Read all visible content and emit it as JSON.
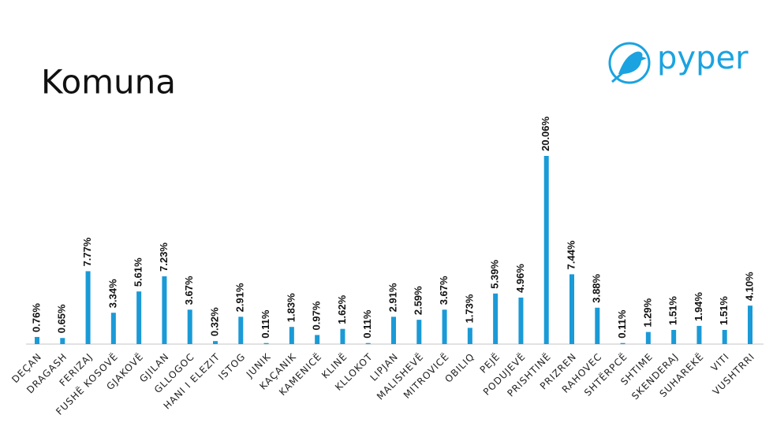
{
  "chart_data": {
    "type": "bar",
    "title": "Komuna",
    "logo": "pyper",
    "categories": [
      "DEÇAN",
      "DRAGASH",
      "FERIZAJ",
      "FUSHË KOSOVË",
      "GJAKOVË",
      "GJILAN",
      "GLLOGOC",
      "HANI I ELEZIT",
      "ISTOG",
      "JUNIK",
      "KAÇANIK",
      "KAMENICË",
      "KLINË",
      "KLLOKOT",
      "LIPJAN",
      "MALISHEVË",
      "MITROVICË",
      "OBILIQ",
      "PEJË",
      "PODUJEVË",
      "PRISHTINË",
      "PRIZREN",
      "RAHOVEC",
      "SHTËRPCË",
      "SHTIME",
      "SKENDERAJ",
      "SUHAREKË",
      "VITI",
      "VUSHTRRI"
    ],
    "values": [
      0.76,
      0.65,
      7.77,
      3.34,
      5.61,
      7.23,
      3.67,
      0.32,
      2.91,
      0.11,
      1.83,
      0.97,
      1.62,
      0.11,
      2.91,
      2.59,
      3.67,
      1.73,
      5.39,
      4.96,
      20.06,
      7.44,
      3.88,
      0.11,
      1.29,
      1.51,
      1.94,
      1.51,
      4.1
    ],
    "value_labels": [
      "0.76%",
      "0.65%",
      "7.77%",
      "3.34%",
      "5.61%",
      "7.23%",
      "3.67%",
      "0.32%",
      "2.91%",
      "0.11%",
      "1.83%",
      "0.97%",
      "1.62%",
      "0.11%",
      "2.91%",
      "2.59%",
      "3.67%",
      "1.73%",
      "5.39%",
      "4.96%",
      "20.06%",
      "7.44%",
      "3.88%",
      "0.11%",
      "1.29%",
      "1.51%",
      "1.94%",
      "1.51%",
      "4.10%"
    ],
    "color": "#1a9ad6"
  }
}
